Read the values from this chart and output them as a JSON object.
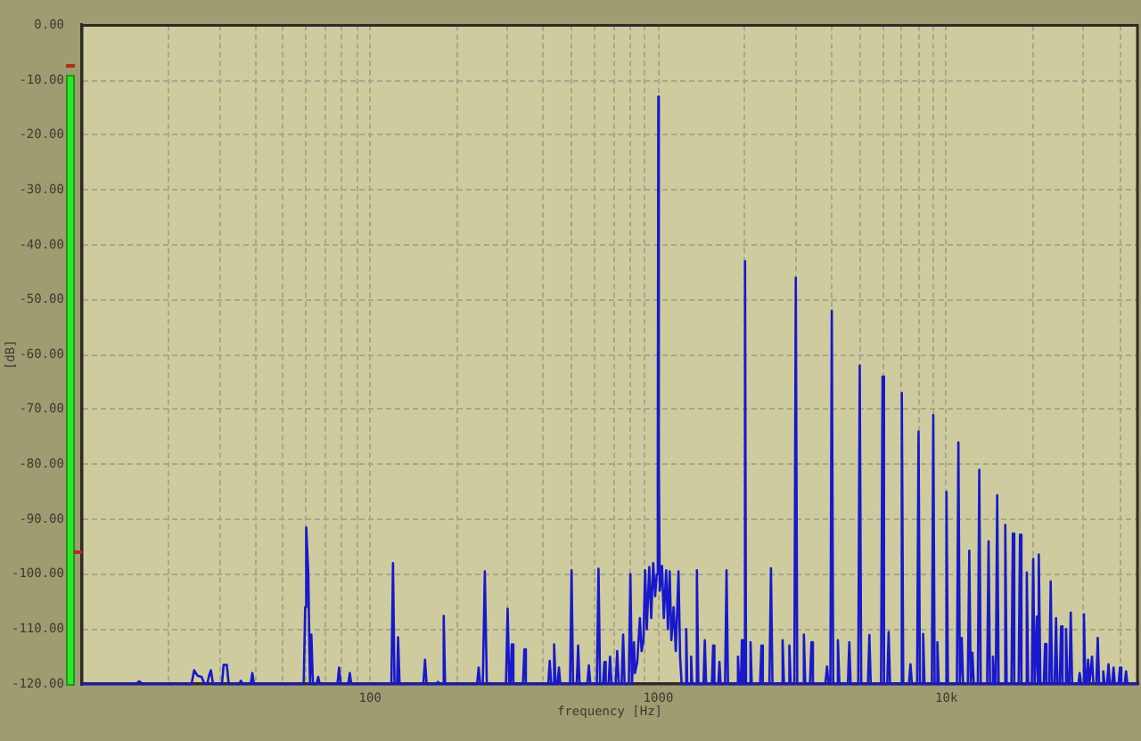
{
  "chart_data": {
    "type": "line",
    "xlabel": "frequency [Hz]",
    "ylabel": "[dB]",
    "log": "x",
    "xlim": [
      10,
      46000
    ],
    "xticks": [
      {
        "value": 20,
        "label": null
      },
      {
        "value": 30,
        "label": null
      },
      {
        "value": 40,
        "label": null
      },
      {
        "value": 50,
        "label": null
      },
      {
        "value": 60,
        "label": null
      },
      {
        "value": 70,
        "label": null
      },
      {
        "value": 80,
        "label": null
      },
      {
        "value": 90,
        "label": null
      },
      {
        "value": 100,
        "label": "100"
      },
      {
        "value": 200,
        "label": null
      },
      {
        "value": 300,
        "label": null
      },
      {
        "value": 400,
        "label": null
      },
      {
        "value": 500,
        "label": null
      },
      {
        "value": 600,
        "label": null
      },
      {
        "value": 700,
        "label": null
      },
      {
        "value": 800,
        "label": null
      },
      {
        "value": 900,
        "label": null
      },
      {
        "value": 1000,
        "label": "1000"
      },
      {
        "value": 2000,
        "label": null
      },
      {
        "value": 3000,
        "label": null
      },
      {
        "value": 4000,
        "label": null
      },
      {
        "value": 5000,
        "label": null
      },
      {
        "value": 6000,
        "label": null
      },
      {
        "value": 7000,
        "label": null
      },
      {
        "value": 8000,
        "label": null
      },
      {
        "value": 9000,
        "label": null
      },
      {
        "value": 10000,
        "label": "10k"
      },
      {
        "value": 20000,
        "label": null
      },
      {
        "value": 30000,
        "label": null
      },
      {
        "value": 40000,
        "label": null
      }
    ],
    "ylim": [
      -120,
      0
    ],
    "yticks": [
      {
        "value": 0,
        "label": "0.00"
      },
      {
        "value": -10,
        "label": "-10.00"
      },
      {
        "value": -20,
        "label": "-20.00"
      },
      {
        "value": -30,
        "label": "-30.00"
      },
      {
        "value": -40,
        "label": "-40.00"
      },
      {
        "value": -50,
        "label": "-50.00"
      },
      {
        "value": -60,
        "label": "-60.00"
      },
      {
        "value": -70,
        "label": "-70.00"
      },
      {
        "value": -80,
        "label": "-80.00"
      },
      {
        "value": -90,
        "label": "-90.00"
      },
      {
        "value": -100,
        "label": "-100.00"
      },
      {
        "value": -110,
        "label": "-110.00"
      },
      {
        "value": -120,
        "label": "-120.00"
      }
    ],
    "grid": true,
    "marker": "none",
    "line_style": "solid",
    "x": [
      10,
      15.4,
      15.8,
      16.2,
      24,
      24.5,
      25.2,
      26,
      26.6,
      27.2,
      27.6,
      28,
      28.5,
      30.6,
      31,
      31.8,
      32.3,
      35.1,
      35.6,
      36.1,
      38.5,
      39,
      39.5,
      58.8,
      59.5,
      60,
      61,
      61.8,
      62.5,
      63.3,
      65.2,
      66,
      66.8,
      77,
      78,
      79,
      84,
      85,
      86,
      118.5,
      120,
      121.5,
      124,
      125,
      126.5,
      153,
      155,
      157,
      170,
      172,
      174,
      178,
      180,
      182,
      235,
      238,
      241,
      246,
      250,
      254,
      296,
      300,
      304,
      307,
      310,
      314,
      339,
      343,
      347,
      415,
      420,
      425,
      430,
      435,
      440,
      447,
      452,
      457,
      494,
      500,
      506,
      521,
      527,
      533,
      567,
      574,
      581,
      612,
      620,
      628,
      643,
      650,
      657,
      672,
      680,
      688,
      711,
      720,
      729,
      746,
      755,
      764,
      790,
      800,
      810,
      815,
      823,
      830,
      845,
      863,
      875,
      888,
      900,
      912,
      930,
      945,
      960,
      975,
      988,
      996,
      1000,
      1004,
      1012,
      1030,
      1045,
      1065,
      1080,
      1095,
      1110,
      1130,
      1150,
      1175,
      1190,
      1205,
      1240,
      1250,
      1260,
      1290,
      1300,
      1310,
      1345,
      1361,
      1377,
      1435,
      1450,
      1465,
      1535,
      1550,
      1565,
      1615,
      1630,
      1645,
      1705,
      1725,
      1745,
      1870,
      1890,
      1910,
      1935,
      1950,
      1968,
      1985,
      2000,
      2015,
      2070,
      2090,
      2110,
      2255,
      2280,
      2305,
      2430,
      2460,
      2490,
      2670,
      2700,
      2730,
      2820,
      2850,
      2880,
      2965,
      3000,
      3035,
      3165,
      3200,
      3235,
      3360,
      3400,
      3440,
      3800,
      3850,
      3900,
      3955,
      4000,
      4045,
      4150,
      4200,
      4250,
      4550,
      4600,
      4650,
      4940,
      5000,
      5060,
      5340,
      5400,
      5460,
      5930,
      6000,
      6070,
      6230,
      6300,
      6370,
      6920,
      7000,
      7080,
      7410,
      7500,
      7590,
      7910,
      8000,
      8090,
      8210,
      8300,
      8390,
      8900,
      9000,
      9100,
      9200,
      9300,
      9400,
      9880,
      10000,
      10120,
      10870,
      11000,
      11130,
      11180,
      11300,
      11420,
      11860,
      12000,
      12140,
      12160,
      12300,
      12440,
      12850,
      13000,
      13150,
      13840,
      14000,
      14160,
      14340,
      14500,
      14660,
      14830,
      15000,
      15170,
      15820,
      16000,
      16180,
      16810,
      17000,
      17190,
      17800,
      18000,
      18200,
      18790,
      19000,
      19210,
      19780,
      20000,
      20220,
      20400,
      20600,
      20750,
      20820,
      21000,
      21180,
      21760,
      22000,
      22240,
      22750,
      23000,
      23250,
      23740,
      24000,
      24260,
      24720,
      25000,
      25280,
      25710,
      26000,
      26290,
      26700,
      27000,
      27300,
      28680,
      29000,
      29320,
      29670,
      30000,
      30330,
      30660,
      31000,
      31340,
      31650,
      32000,
      32350,
      33130,
      33500,
      33870,
      34620,
      35000,
      35380,
      36100,
      36500,
      36900,
      37580,
      38000,
      38420,
      39560,
      40000,
      40440,
      41540,
      42000,
      42460,
      46000
    ],
    "series": [
      {
        "color": "#1818cc",
        "values": [
          -120,
          -120,
          -119.5,
          -120,
          -120,
          -117.5,
          -118.5,
          -118.7,
          -120,
          -120,
          -118.5,
          -117.5,
          -120,
          -120,
          -116.5,
          -116.5,
          -120,
          -120,
          -119.4,
          -120,
          -120,
          -118,
          -120,
          -120,
          -106,
          -91.5,
          -100,
          -120,
          -111,
          -120,
          -120,
          -118.7,
          -120,
          -120,
          -117,
          -120,
          -120,
          -118,
          -120,
          -120,
          -98,
          -120,
          -120,
          -111.5,
          -120,
          -120,
          -115.6,
          -120,
          -120,
          -119.6,
          -120,
          -120,
          -107.6,
          -120,
          -120,
          -117,
          -120,
          -120,
          -99.5,
          -120,
          -120,
          -106.3,
          -120,
          -120,
          -112.8,
          -120,
          -120,
          -113.7,
          -120,
          -120,
          -115.8,
          -120,
          -120,
          -112.8,
          -120,
          -120,
          -117,
          -120,
          -120,
          -99.3,
          -120,
          -120,
          -113,
          -120,
          -120,
          -116.6,
          -120,
          -120,
          -99,
          -120,
          -120,
          -116,
          -120,
          -120,
          -115,
          -120,
          -120,
          -114,
          -120,
          -120,
          -111,
          -120,
          -120,
          -100,
          -120,
          -120,
          -112.4,
          -118,
          -116,
          -108,
          -114,
          -112,
          -99.3,
          -110,
          -98.7,
          -108,
          -98,
          -104,
          -100,
          -80,
          -13,
          -80,
          -103,
          -98.5,
          -108,
          -99.3,
          -110,
          -99.5,
          -112,
          -106,
          -114,
          -99.5,
          -115,
          -120,
          -120,
          -110,
          -120,
          -120,
          -115,
          -120,
          -120,
          -99.3,
          -120,
          -120,
          -112,
          -120,
          -120,
          -113,
          -120,
          -120,
          -116,
          -120,
          -120,
          -99.3,
          -120,
          -120,
          -115,
          -120,
          -120,
          -112,
          -120,
          -120,
          -43,
          -120,
          -120,
          -112.4,
          -120,
          -120,
          -113,
          -120,
          -120,
          -98.9,
          -120,
          -120,
          -112,
          -120,
          -120,
          -113,
          -120,
          -120,
          -46,
          -120,
          -120,
          -111,
          -120,
          -120,
          -112.4,
          -120,
          -120,
          -116.8,
          -120,
          -120,
          -52,
          -120,
          -120,
          -112,
          -120,
          -120,
          -112.4,
          -120,
          -120,
          -62,
          -120,
          -120,
          -111.1,
          -120,
          -120,
          -64,
          -120,
          -120,
          -110.5,
          -120,
          -120,
          -67,
          -120,
          -120,
          -116.4,
          -120,
          -120,
          -74,
          -120,
          -120,
          -110.9,
          -120,
          -120,
          -71,
          -120,
          -120,
          -112.4,
          -120,
          -120,
          -85,
          -120,
          -120,
          -76,
          -120,
          -120,
          -111.6,
          -120,
          -120,
          -95.7,
          -120,
          -120,
          -114.3,
          -120,
          -120,
          -81,
          -120,
          -120,
          -94,
          -120,
          -120,
          -115,
          -120,
          -120,
          -85.6,
          -120,
          -120,
          -91,
          -120,
          -120,
          -92.6,
          -120,
          -120,
          -92.8,
          -120,
          -120,
          -99.7,
          -120,
          -120,
          -97.2,
          -120,
          -120,
          -107.7,
          -120,
          -120,
          -96.4,
          -120,
          -120,
          -112.7,
          -120,
          -120,
          -101.3,
          -120,
          -120,
          -108,
          -120,
          -120,
          -109.5,
          -120,
          -120,
          -110,
          -120,
          -120,
          -107,
          -120,
          -120,
          -118,
          -120,
          -120,
          -107.3,
          -120,
          -120,
          -115.6,
          -120,
          -120,
          -115,
          -120,
          -120,
          -111.6,
          -120,
          -120,
          -117.7,
          -120,
          -120,
          -116.4,
          -120,
          -120,
          -117,
          -120,
          -120,
          -117,
          -120,
          -120,
          -117.7,
          -120,
          -120
        ]
      }
    ]
  }
}
